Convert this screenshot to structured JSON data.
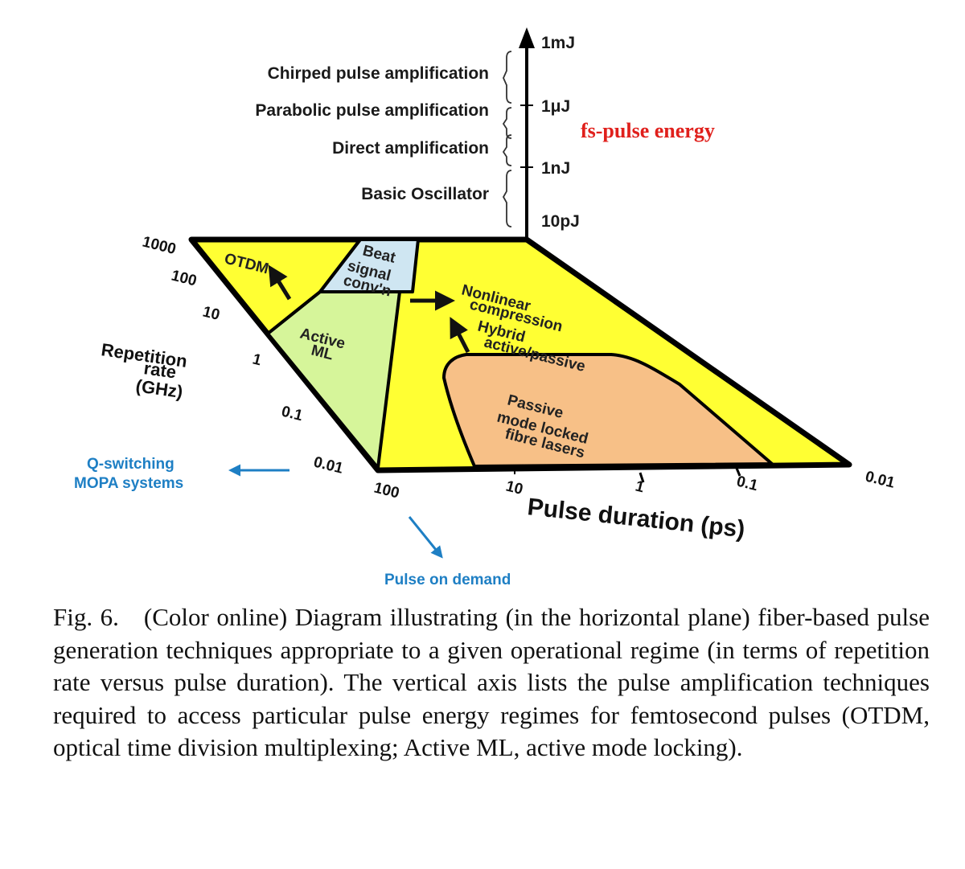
{
  "energy_axis": {
    "title": "fs-pulse energy",
    "ticks": [
      "1mJ",
      "1μJ",
      "1nJ",
      "10pJ"
    ],
    "techniques": [
      "Chirped pulse amplification",
      "Parabolic pulse amplification",
      "Direct amplification",
      "Basic Oscillator"
    ]
  },
  "repetition_axis": {
    "title_lines": [
      "Repetition",
      "rate",
      "(GHz)"
    ],
    "ticks": [
      "1000",
      "100",
      "10",
      "1",
      "0.1",
      "0.01"
    ]
  },
  "duration_axis": {
    "title": "Pulse duration (ps)",
    "ticks": [
      "100",
      "10",
      "1",
      "0.1",
      "0.01"
    ]
  },
  "regions": {
    "otdm": "OTDM",
    "beat_signal": [
      "Beat",
      "signal",
      "conv'n"
    ],
    "active_ml": [
      "Active",
      "ML"
    ],
    "nonlinear_compression": [
      "Nonlinear",
      "compression"
    ],
    "hybrid": [
      "Hybrid",
      "active/passive"
    ],
    "passive": [
      "Passive",
      "mode locked",
      "fibre lasers"
    ]
  },
  "outside_labels": {
    "q_switching": [
      "Q-switching",
      "MOPA systems"
    ],
    "pulse_on_demand": "Pulse on demand"
  },
  "colors": {
    "plane_yellow": "#ffff33",
    "active_ml_green": "#d6f59a",
    "beat_blue": "#cfe6f2",
    "passive_orange": "#f7c087",
    "arrow_blue": "#1e7fc4",
    "energy_red": "#e0201c"
  },
  "caption": "Fig. 6. (Color online) Diagram illustrating (in the horizontal plane) fiber-based pulse generation techniques appropriate to a given operational regime (in terms of repetition rate versus pulse duration). The vertical axis lists the pulse amplification techniques required to access particular pulse energy regimes for femtosecond pulses (OTDM, optical time division multiplexing; Active ML, active mode locking)."
}
